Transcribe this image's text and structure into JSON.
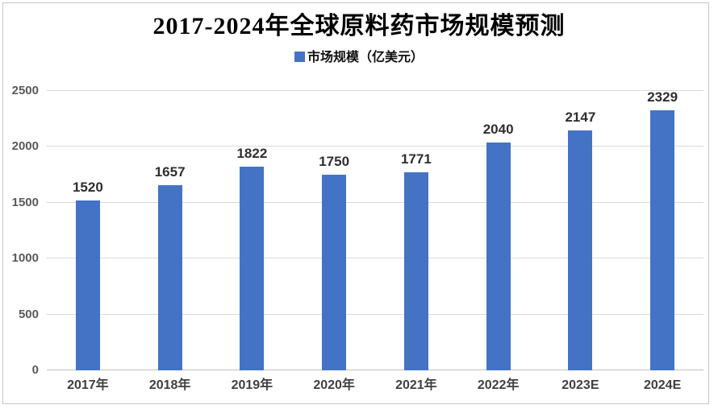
{
  "title": "2017-2024年全球原料药市场规模预测",
  "legend": {
    "label": "市场规模（亿美元）"
  },
  "colors": {
    "bar": "#4472C4",
    "gridline": "#D9D9D9",
    "axis_line": "#BFBFBF",
    "y_tick_text": "#595959",
    "x_label_text": "#404040",
    "data_label_text": "#2E2E2E"
  },
  "chart_data": {
    "type": "bar",
    "title": "2017-2024年全球原料药市场规模预测",
    "legend_entries": [
      "市场规模（亿美元）"
    ],
    "legend_position": "top",
    "categories": [
      "2017年",
      "2018年",
      "2019年",
      "2020年",
      "2021年",
      "2022年",
      "2023E",
      "2024E"
    ],
    "values": [
      1520,
      1657,
      1822,
      1750,
      1771,
      2040,
      2147,
      2329
    ],
    "xlabel": "",
    "ylabel": "",
    "ylim": [
      0,
      2500
    ],
    "yticks": [
      0,
      500,
      1000,
      1500,
      2000,
      2500
    ],
    "grid": true,
    "data_labels": true
  }
}
